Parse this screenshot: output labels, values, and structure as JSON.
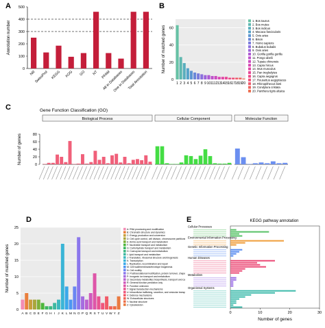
{
  "chart_data": [
    {
      "panel": "A",
      "type": "bar",
      "ylabel": "Annotation number",
      "xlabel": "",
      "categories": [
        "NR",
        "SwissProt",
        "KEGG",
        "KOG",
        "GO",
        "NT",
        "PFAM",
        "All in Databases",
        "One in Databases",
        "Total Annotation"
      ],
      "values": [
        250,
        130,
        185,
        95,
        125,
        460,
        125,
        80,
        460,
        460
      ],
      "ylim": [
        0,
        500
      ],
      "yticks": [
        0,
        100,
        200,
        300,
        400,
        500
      ],
      "dashed_lines": [
        300,
        400
      ],
      "color": "#c41e3a"
    },
    {
      "panel": "B",
      "type": "bar",
      "ylabel": "Number of matched genes",
      "xlabel": "",
      "categories": [
        "1",
        "2",
        "3",
        "4",
        "5",
        "6",
        "7",
        "8",
        "9",
        "10",
        "11",
        "12",
        "13",
        "14",
        "15",
        "16",
        "17",
        "18",
        "19",
        "20"
      ],
      "values": [
        63,
        26,
        19,
        13,
        10,
        8,
        7,
        6,
        5,
        5,
        4,
        4,
        3,
        3,
        3,
        2,
        2,
        2,
        2,
        1
      ],
      "ylim": [
        0,
        70
      ],
      "yticks": [
        0,
        20,
        40,
        60
      ],
      "legend": [
        "1. Bos taurus",
        "2. Bos mutus",
        "3. Bos indicus",
        "4. Macaca fascicularis",
        "5. Ovis aries",
        "6. Bison",
        "7. Homo sapiens",
        "8. Bubalus bubalis",
        "9. Ovis aries",
        "10. Gorilla gorilla gorilla",
        "11. Pongo abelii",
        "12. Tupaia chinensis",
        "13. Capra hircus",
        "14. Mus musculus",
        "15. Pan troglodytes",
        "16. Capra aegagrus",
        "17. Rousettus aegyptiacus",
        "18. Rhinopithecus bieti",
        "19. Condylura cristata",
        "20. Panthera tigris altaica"
      ],
      "colors": [
        "#66c2a5",
        "#5fb8b0",
        "#58aebd",
        "#56a3c9",
        "#5d96d2",
        "#6a88d8",
        "#7a7bdc",
        "#8b6fdd",
        "#9d64da",
        "#ae5ad4",
        "#be52cb",
        "#cc4cc0",
        "#d848b3",
        "#e146a5",
        "#e84796",
        "#ec4b87",
        "#ef5179",
        "#f05a6b",
        "#ef645e",
        "#ed7052"
      ]
    },
    {
      "panel": "C",
      "type": "bar",
      "title": "Gene Function Classification (GO)",
      "ylabel": "Number of genes",
      "xlabel": "",
      "groups": [
        {
          "name": "Biological Process",
          "color": "#f0607a",
          "values": [
            1,
            4,
            4,
            26,
            20,
            6,
            62,
            1,
            2,
            27,
            2,
            6,
            36,
            12,
            20,
            3,
            24,
            28,
            5,
            20,
            3,
            12,
            14,
            11,
            24,
            7
          ]
        },
        {
          "name": "Cellular Component",
          "color": "#44dd44",
          "values": [
            48,
            48,
            3,
            1,
            1,
            5,
            24,
            22,
            14,
            23,
            40,
            22,
            3,
            2,
            2,
            4
          ]
        },
        {
          "name": "Molecular Function",
          "color": "#6b8ff0",
          "values": [
            42,
            19,
            1,
            3,
            5,
            3,
            8,
            3,
            4
          ]
        }
      ],
      "ylim": [
        0,
        80
      ],
      "yticks": [
        0,
        20,
        40,
        60,
        80
      ]
    },
    {
      "panel": "D",
      "type": "bar",
      "ylabel": "Number of matched genes",
      "xlabel": "",
      "categories": [
        "A",
        "B",
        "C",
        "D",
        "E",
        "F",
        "G",
        "H",
        "I",
        "J",
        "K",
        "L",
        "M",
        "N",
        "O",
        "P",
        "Q",
        "R",
        "S",
        "T",
        "U",
        "V",
        "W",
        "Y",
        "Z"
      ],
      "values": [
        3,
        5,
        3,
        3,
        3,
        2,
        1,
        1,
        2,
        3,
        20,
        7,
        3,
        7,
        22,
        4,
        3,
        5,
        11,
        4,
        2,
        4,
        1,
        1,
        4
      ],
      "ylim": [
        0,
        25
      ],
      "yticks": [
        0,
        5,
        10,
        15,
        20,
        25
      ],
      "legend": [
        "A: RNA processing and modification",
        "B: Chromatin structure and dynamics",
        "C: Energy production and conversion",
        "D: Cell cycle control, cell division, chromosome partitioning",
        "E: Amino acid transport and metabolism",
        "F: Nucleotide transport and metabolism",
        "G: Carbohydrate transport and metabolism",
        "H: Coenzyme transport and metabolism",
        "I: Lipid transport and metabolism",
        "J: Translation, ribosomal structure and biogenesis",
        "K: Transcription",
        "L: Replication, recombination and repair",
        "M: Cell wall/membrane/envelope biogenesis",
        "N: Cell motility",
        "O: Posttranslational modification, protein turnover, chaperones",
        "P: Inorganic ion transport and metabolism",
        "Q: Secondary metabolites biosynthesis, transport and catabolism",
        "R: General function prediction only",
        "S: Function unknown",
        "T: Signal transduction mechanisms",
        "U: Intracellular trafficking, secretion, and vesicular transport",
        "V: Defense mechanisms",
        "W: Extracellular structures",
        "Y: Nuclear structure",
        "Z: Cytoskeleton"
      ],
      "colors": [
        "#f48bb3",
        "#ea7f3c",
        "#c79e3a",
        "#a9a63a",
        "#7fb03a",
        "#4cb63a",
        "#3cb860",
        "#3cb882",
        "#3cb8a0",
        "#3cb8be",
        "#3ab5d6",
        "#3aa8ea",
        "#4c97f2",
        "#6a86f2",
        "#8b77ec",
        "#a56ce0",
        "#bc62d0",
        "#cf5abd",
        "#de55a8",
        "#e85492",
        "#ef567c",
        "#f25b68",
        "#f16356",
        "#ee6d48",
        "#ea7a40"
      ]
    },
    {
      "panel": "E",
      "type": "bar",
      "orientation": "horizontal",
      "title": "KEGG pathway annotation",
      "xlabel": "Number of genes",
      "xlim": [
        0,
        30
      ],
      "xticks": [
        0,
        10,
        20,
        30
      ],
      "groups": [
        {
          "name": "Cellular Processes",
          "color": "#5cc36a",
          "values": [
            2,
            13,
            3,
            4
          ]
        },
        {
          "name": "Environmental Information Processing",
          "color": "#f0a040",
          "values": [
            18,
            5,
            2
          ]
        },
        {
          "name": "Genetic Information Processing",
          "color": "#5b8ef0",
          "values": [
            4,
            3,
            2,
            1
          ]
        },
        {
          "name": "Human Diseases",
          "color": "#ec4f7a",
          "values": [
            15,
            9,
            10,
            12,
            5,
            4,
            3
          ]
        },
        {
          "name": "Metabolism",
          "color": "#9b6fe6",
          "values": [
            2,
            2,
            1,
            1,
            1
          ]
        },
        {
          "name": "Organismal Systems",
          "color": "#43bcae",
          "values": [
            22,
            15,
            7,
            5,
            3,
            2,
            2,
            1,
            4
          ]
        }
      ]
    }
  ]
}
